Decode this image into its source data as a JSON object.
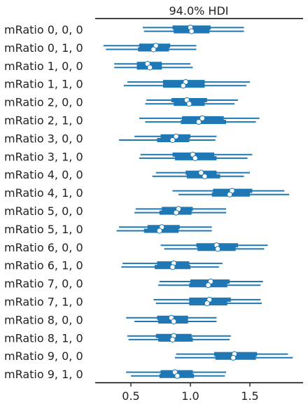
{
  "chart_data": {
    "type": "forest",
    "title": "94.0% HDI",
    "xlim": [
      0.2,
      1.9
    ],
    "xticks": [
      "0.5",
      "1.0",
      "1.5"
    ],
    "xtick_values": [
      0.5,
      1.0,
      1.5
    ],
    "color": "#1f77b4",
    "rows": [
      {
        "label": "mRatio 0, 0, 0",
        "chains": [
          {
            "hdi": [
              0.6,
              1.45
            ],
            "iqr": [
              0.85,
              1.17
            ],
            "mean": 1.0
          },
          {
            "hdi": [
              0.61,
              1.45
            ],
            "iqr": [
              0.86,
              1.16
            ],
            "mean": 1.01
          }
        ]
      },
      {
        "label": "mRatio 0, 1, 0",
        "chains": [
          {
            "hdi": [
              0.27,
              1.05
            ],
            "iqr": [
              0.57,
              0.83
            ],
            "mean": 0.71
          },
          {
            "hdi": [
              0.29,
              1.05
            ],
            "iqr": [
              0.56,
              0.82
            ],
            "mean": 0.69
          }
        ]
      },
      {
        "label": "mRatio 1, 0, 0",
        "chains": [
          {
            "hdi": [
              0.36,
              1.0
            ],
            "iqr": [
              0.55,
              0.76
            ],
            "mean": 0.64
          },
          {
            "hdi": [
              0.36,
              1.02
            ],
            "iqr": [
              0.55,
              0.76
            ],
            "mean": 0.66
          }
        ]
      },
      {
        "label": "mRatio 1, 1, 0",
        "chains": [
          {
            "hdi": [
              0.47,
              1.5
            ],
            "iqr": [
              0.77,
              1.12
            ],
            "mean": 0.96
          },
          {
            "hdi": [
              0.44,
              1.47
            ],
            "iqr": [
              0.77,
              1.12
            ],
            "mean": 0.94
          }
        ]
      },
      {
        "label": "mRatio 2, 0, 0",
        "chains": [
          {
            "hdi": [
              0.63,
              1.4
            ],
            "iqr": [
              0.84,
              1.14
            ],
            "mean": 0.97
          },
          {
            "hdi": [
              0.62,
              1.37
            ],
            "iqr": [
              0.86,
              1.12
            ],
            "mean": 0.99
          }
        ]
      },
      {
        "label": "mRatio 2, 1, 0",
        "chains": [
          {
            "hdi": [
              0.57,
              1.58
            ],
            "iqr": [
              0.93,
              1.28
            ],
            "mean": 1.1
          },
          {
            "hdi": [
              0.62,
              1.55
            ],
            "iqr": [
              0.92,
              1.3
            ],
            "mean": 1.07
          }
        ]
      },
      {
        "label": "mRatio 3, 0, 0",
        "chains": [
          {
            "hdi": [
              0.53,
              1.22
            ],
            "iqr": [
              0.75,
              1.0
            ],
            "mean": 0.88
          },
          {
            "hdi": [
              0.4,
              1.21
            ],
            "iqr": [
              0.72,
              0.99
            ],
            "mean": 0.85
          }
        ]
      },
      {
        "label": "mRatio 3, 1, 0",
        "chains": [
          {
            "hdi": [
              0.58,
              1.52
            ],
            "iqr": [
              0.85,
              1.2
            ],
            "mean": 1.02
          },
          {
            "hdi": [
              0.57,
              1.48
            ],
            "iqr": [
              0.87,
              1.22
            ],
            "mean": 1.04
          }
        ]
      },
      {
        "label": "mRatio 4, 0, 0",
        "chains": [
          {
            "hdi": [
              0.71,
              1.5
            ],
            "iqr": [
              0.96,
              1.22
            ],
            "mean": 1.09
          },
          {
            "hdi": [
              0.68,
              1.45
            ],
            "iqr": [
              0.97,
              1.25
            ],
            "mean": 1.12
          }
        ]
      },
      {
        "label": "mRatio 4, 1, 0",
        "chains": [
          {
            "hdi": [
              0.85,
              1.79
            ],
            "iqr": [
              1.19,
              1.52
            ],
            "mean": 1.35
          },
          {
            "hdi": [
              0.9,
              1.83
            ],
            "iqr": [
              1.18,
              1.5
            ],
            "mean": 1.33
          }
        ]
      },
      {
        "label": "mRatio 5, 0, 0",
        "chains": [
          {
            "hdi": [
              0.54,
              1.3
            ],
            "iqr": [
              0.76,
              1.02
            ],
            "mean": 0.9
          },
          {
            "hdi": [
              0.53,
              1.3
            ],
            "iqr": [
              0.74,
              1.01
            ],
            "mean": 0.88
          }
        ]
      },
      {
        "label": "mRatio 5, 1, 0",
        "chains": [
          {
            "hdi": [
              0.4,
              1.18
            ],
            "iqr": [
              0.64,
              0.91
            ],
            "mean": 0.76
          },
          {
            "hdi": [
              0.38,
              1.18
            ],
            "iqr": [
              0.61,
              0.9
            ],
            "mean": 0.74
          }
        ]
      },
      {
        "label": "mRatio 6, 0, 0",
        "chains": [
          {
            "hdi": [
              0.75,
              1.65
            ],
            "iqr": [
              1.05,
              1.4
            ],
            "mean": 1.22
          },
          {
            "hdi": [
              0.78,
              1.62
            ],
            "iqr": [
              1.06,
              1.38
            ],
            "mean": 1.23
          }
        ]
      },
      {
        "label": "mRatio 6, 1, 0",
        "chains": [
          {
            "hdi": [
              0.43,
              1.27
            ],
            "iqr": [
              0.72,
              0.99
            ],
            "mean": 0.86
          },
          {
            "hdi": [
              0.42,
              1.24
            ],
            "iqr": [
              0.7,
              1.0
            ],
            "mean": 0.85
          }
        ]
      },
      {
        "label": "mRatio 7, 0, 0",
        "chains": [
          {
            "hdi": [
              0.74,
              1.61
            ],
            "iqr": [
              1.0,
              1.33
            ],
            "mean": 1.17
          },
          {
            "hdi": [
              0.73,
              1.59
            ],
            "iqr": [
              0.99,
              1.31
            ],
            "mean": 1.15
          }
        ]
      },
      {
        "label": "mRatio 7, 1, 0",
        "chains": [
          {
            "hdi": [
              0.69,
              1.59
            ],
            "iqr": [
              0.99,
              1.34
            ],
            "mean": 1.16
          },
          {
            "hdi": [
              0.71,
              1.6
            ],
            "iqr": [
              0.99,
              1.31
            ],
            "mean": 1.14
          }
        ]
      },
      {
        "label": "mRatio 8, 0, 0",
        "chains": [
          {
            "hdi": [
              0.46,
              1.22
            ],
            "iqr": [
              0.72,
              0.98
            ],
            "mean": 0.84
          },
          {
            "hdi": [
              0.53,
              1.22
            ],
            "iqr": [
              0.73,
              0.98
            ],
            "mean": 0.86
          }
        ]
      },
      {
        "label": "mRatio 8, 1, 0",
        "chains": [
          {
            "hdi": [
              0.47,
              1.34
            ],
            "iqr": [
              0.71,
              1.01
            ],
            "mean": 0.86
          },
          {
            "hdi": [
              0.48,
              1.33
            ],
            "iqr": [
              0.73,
              1.02
            ],
            "mean": 0.85
          }
        ]
      },
      {
        "label": "mRatio 9, 0, 0",
        "chains": [
          {
            "hdi": [
              0.88,
              1.82
            ],
            "iqr": [
              1.2,
              1.56
            ],
            "mean": 1.37
          },
          {
            "hdi": [
              0.87,
              1.86
            ],
            "iqr": [
              1.21,
              1.55
            ],
            "mean": 1.36
          }
        ]
      },
      {
        "label": "mRatio 9, 1, 0",
        "chains": [
          {
            "hdi": [
              0.46,
              1.3
            ],
            "iqr": [
              0.75,
              1.02
            ],
            "mean": 0.87
          },
          {
            "hdi": [
              0.5,
              1.29
            ],
            "iqr": [
              0.74,
              1.03
            ],
            "mean": 0.89
          }
        ]
      }
    ]
  }
}
